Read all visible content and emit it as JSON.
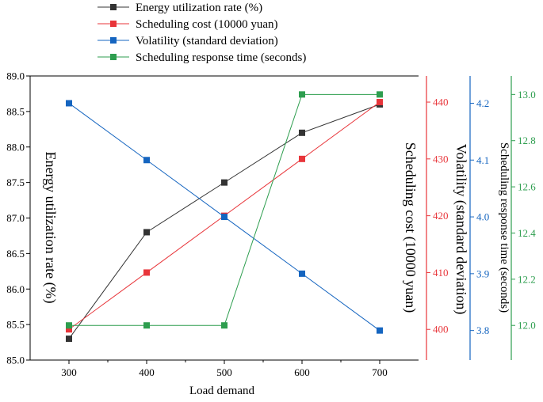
{
  "chart_data": {
    "type": "line",
    "x": [
      300,
      400,
      500,
      600,
      700
    ],
    "xlabel": "Load demand",
    "xlim": [
      250,
      750
    ],
    "x_ticks": [
      "300",
      "400",
      "500",
      "600",
      "700"
    ],
    "series": [
      {
        "name": "Energy utilization rate (%)",
        "axis": "left",
        "color": "#333333",
        "values": [
          85.3,
          86.8,
          87.5,
          88.2,
          88.6
        ],
        "ylabel": "Energy utilization rate (%)",
        "ylim": [
          85.0,
          89.0
        ],
        "ticks": [
          "85.0",
          "85.5",
          "86.0",
          "86.5",
          "87.0",
          "87.5",
          "88.0",
          "88.5",
          "89.0"
        ]
      },
      {
        "name": "Scheduling cost (10000 yuan)",
        "axis": "right-1",
        "color": "#e8353a",
        "values": [
          400,
          410,
          420,
          430,
          440
        ],
        "ylabel": "Scheduling cost (10000 yuan)",
        "ylim": [
          394.6,
          444.6
        ],
        "ticks": [
          "400",
          "410",
          "420",
          "430",
          "440"
        ]
      },
      {
        "name": "Volatility (standard deviation)",
        "axis": "right-2",
        "color": "#1565c0",
        "values": [
          4.2,
          4.1,
          4.0,
          3.9,
          3.8
        ],
        "ylabel": "Volatility (standard deviation)",
        "ylim": [
          3.748,
          4.248
        ],
        "ticks": [
          "3.8",
          "3.9",
          "4.0",
          "4.1",
          "4.2"
        ]
      },
      {
        "name": "Scheduling response time (seconds)",
        "axis": "right-3",
        "color": "#2e9e4f",
        "values": [
          12.0,
          12.0,
          12.0,
          13.0,
          13.0
        ],
        "ylabel": "Scheduling response time (seconds)",
        "ylim": [
          11.85,
          13.08
        ],
        "ticks": [
          "12.0",
          "12.2",
          "12.4",
          "12.6",
          "12.8",
          "13.0"
        ]
      }
    ],
    "legend_position": "top-center"
  }
}
